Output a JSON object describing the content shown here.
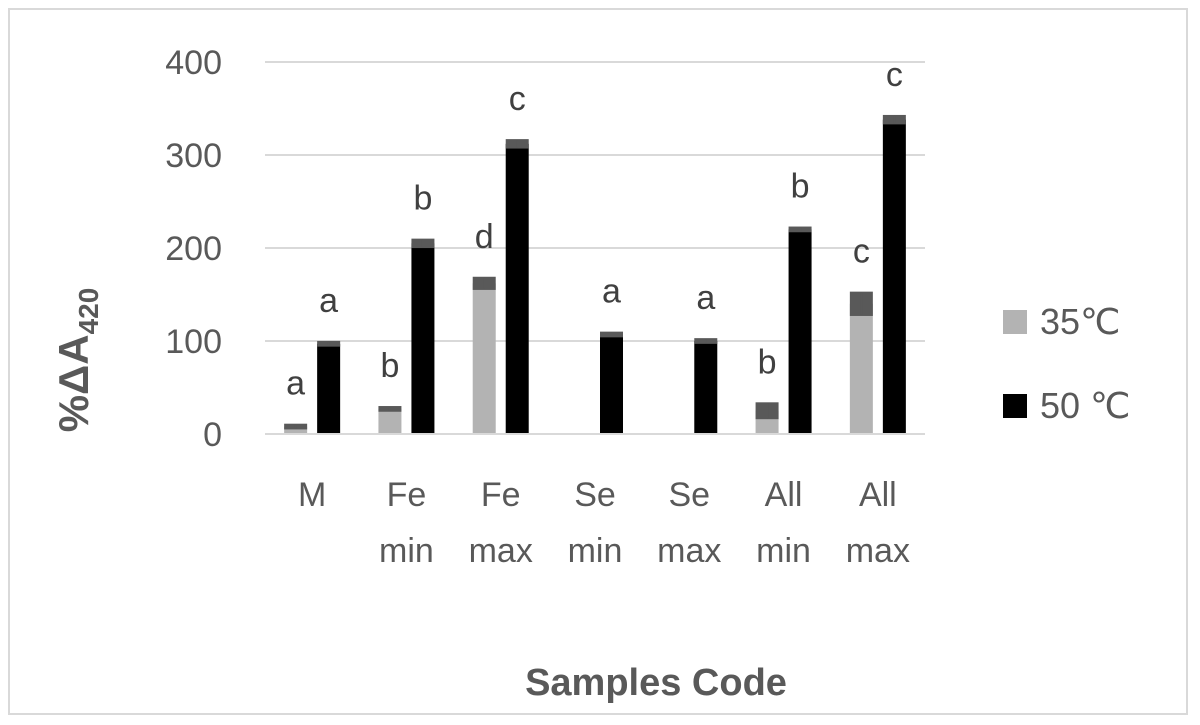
{
  "chart_data": {
    "type": "bar",
    "title": "",
    "xlabel": "Samples Code",
    "ylabel": {
      "main": "%ΔA",
      "sub": "420"
    },
    "ylim": [
      0,
      400
    ],
    "yticks": [
      0,
      100,
      200,
      300,
      400
    ],
    "grid": true,
    "legend_position": "right",
    "categories": [
      [
        "M"
      ],
      [
        "Fe",
        "min"
      ],
      [
        "Fe",
        "max"
      ],
      [
        "Se",
        "min"
      ],
      [
        "Se",
        "max"
      ],
      [
        "All",
        "min"
      ],
      [
        "All",
        "max"
      ]
    ],
    "series": [
      {
        "name": "35℃",
        "color": "#b3b3b3",
        "values": [
          8,
          27,
          162,
          null,
          null,
          25,
          140
        ],
        "errors": [
          2,
          2,
          6,
          null,
          null,
          8,
          12
        ],
        "labels": [
          "a",
          "b",
          "d",
          "",
          "",
          "b",
          "c"
        ]
      },
      {
        "name": "50 ℃",
        "color": "#000000",
        "values": [
          97,
          205,
          312,
          107,
          100,
          220,
          338
        ],
        "errors": [
          2,
          4,
          4,
          2,
          2,
          2,
          4
        ],
        "labels": [
          "a",
          "b",
          "c",
          "a",
          "a",
          "b",
          "c"
        ]
      }
    ]
  }
}
